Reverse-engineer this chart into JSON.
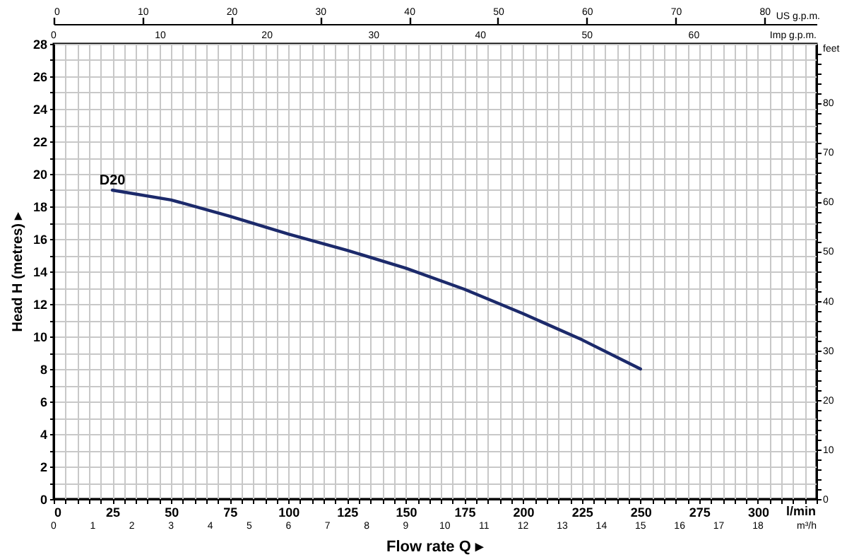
{
  "chart_data": {
    "type": "line",
    "xlabel": "Flow rate Q ▸",
    "ylabel": "Head H (metres) ▸",
    "x2label": "US g.p.m.",
    "y2label": "feet",
    "annotations": [
      "l/min",
      "m³/h",
      "0",
      "1",
      "2",
      "3",
      "4",
      "5",
      "6",
      "7",
      "8",
      "9",
      "10",
      "11",
      "12",
      "13",
      "14",
      "15",
      "16",
      "17",
      "18",
      "Imp g.p.m.",
      "0",
      "10",
      "20",
      "30",
      "40",
      "50",
      "60"
    ],
    "series": [
      {
        "name": "D20",
        "color": "#1c2a6b",
        "x": [
          25,
          50,
          75,
          100,
          125,
          150,
          175,
          200,
          225,
          250
        ],
        "values": [
          19.0,
          18.4,
          17.4,
          16.3,
          15.3,
          14.2,
          12.9,
          11.4,
          9.8,
          8.0
        ]
      }
    ],
    "xlim": [
      0,
      325
    ],
    "ylim": [
      0,
      28
    ],
    "xticks": [
      0,
      {
        "value": 5,
        "label": null
      },
      {
        "value": 10,
        "label": null
      },
      {
        "value": 15,
        "label": null
      },
      {
        "value": 20,
        "label": null
      },
      25,
      {
        "value": 30,
        "label": null
      },
      {
        "value": 35,
        "label": null
      },
      {
        "value": 40,
        "label": null
      },
      {
        "value": 45,
        "label": null
      },
      50,
      {
        "value": 55,
        "label": null
      },
      {
        "value": 60,
        "label": null
      },
      {
        "value": 65,
        "label": null
      },
      {
        "value": 70,
        "label": null
      },
      75,
      {
        "value": 80,
        "label": null
      },
      {
        "value": 85,
        "label": null
      },
      {
        "value": 90,
        "label": null
      },
      {
        "value": 95,
        "label": null
      },
      100,
      {
        "value": 105,
        "label": null
      },
      {
        "value": 110,
        "label": null
      },
      {
        "value": 115,
        "label": null
      },
      {
        "value": 120,
        "label": null
      },
      125,
      {
        "value": 130,
        "label": null
      },
      {
        "value": 135,
        "label": null
      },
      {
        "value": 140,
        "label": null
      },
      {
        "value": 145,
        "label": null
      },
      150,
      {
        "value": 155,
        "label": null
      },
      {
        "value": 160,
        "label": null
      },
      {
        "value": 165,
        "label": null
      },
      {
        "value": 170,
        "label": null
      },
      175,
      {
        "value": 180,
        "label": null
      },
      {
        "value": 185,
        "label": null
      },
      {
        "value": 190,
        "label": null
      },
      {
        "value": 195,
        "label": null
      },
      200,
      {
        "value": 205,
        "label": null
      },
      {
        "value": 210,
        "label": null
      },
      {
        "value": 215,
        "label": null
      },
      {
        "value": 220,
        "label": null
      },
      225,
      {
        "value": 230,
        "label": null
      },
      {
        "value": 235,
        "label": null
      },
      {
        "value": 240,
        "label": null
      },
      {
        "value": 245,
        "label": null
      },
      250,
      {
        "value": 255,
        "label": null
      },
      {
        "value": 260,
        "label": null
      },
      {
        "value": 265,
        "label": null
      },
      {
        "value": 270,
        "label": null
      },
      275,
      {
        "value": 280,
        "label": null
      },
      {
        "value": 285,
        "label": null
      },
      {
        "value": 290,
        "label": null
      },
      {
        "value": 295,
        "label": null
      },
      300,
      {
        "value": 305,
        "label": null
      },
      {
        "value": 310,
        "label": null
      },
      {
        "value": 315,
        "label": null
      },
      {
        "value": 320,
        "label": null
      },
      {
        "value": 325,
        "label": null
      }
    ],
    "yticks": [
      0,
      {
        "value": 1,
        "label": null
      },
      2,
      {
        "value": 3,
        "label": null
      },
      4,
      {
        "value": 5,
        "label": null
      },
      6,
      {
        "value": 7,
        "label": null
      },
      8,
      {
        "value": 9,
        "label": null
      },
      10,
      {
        "value": 11,
        "label": null
      },
      12,
      {
        "value": 13,
        "label": null
      },
      14,
      {
        "value": 15,
        "label": null
      },
      16,
      {
        "value": 17,
        "label": null
      },
      18,
      {
        "value": 19,
        "label": null
      },
      20,
      {
        "value": 21,
        "label": null
      },
      22,
      {
        "value": 23,
        "label": null
      },
      24,
      {
        "value": 25,
        "label": null
      },
      26,
      {
        "value": 27,
        "label": null
      },
      28
    ],
    "x2lim": [
      0,
      85.86
    ],
    "x2ticks": [
      0,
      10,
      20,
      30,
      40,
      50,
      60,
      70,
      80
    ],
    "y2lim": [
      0,
      91.86
    ],
    "y2ticks": [
      0,
      {
        "value": 2,
        "label": null
      },
      {
        "value": 4,
        "label": null
      },
      {
        "value": 6,
        "label": null
      },
      {
        "value": 8,
        "label": null
      },
      10,
      {
        "value": 12,
        "label": null
      },
      {
        "value": 14,
        "label": null
      },
      {
        "value": 16,
        "label": null
      },
      {
        "value": 18,
        "label": null
      },
      20,
      {
        "value": 22,
        "label": null
      },
      {
        "value": 24,
        "label": null
      },
      {
        "value": 26,
        "label": null
      },
      {
        "value": 28,
        "label": null
      },
      30,
      {
        "value": 32,
        "label": null
      },
      {
        "value": 34,
        "label": null
      },
      {
        "value": 36,
        "label": null
      },
      {
        "value": 38,
        "label": null
      },
      40,
      {
        "value": 42,
        "label": null
      },
      {
        "value": 44,
        "label": null
      },
      {
        "value": 46,
        "label": null
      },
      {
        "value": 48,
        "label": null
      },
      50,
      {
        "value": 52,
        "label": null
      },
      {
        "value": 54,
        "label": null
      },
      {
        "value": 56,
        "label": null
      },
      {
        "value": 58,
        "label": null
      },
      60,
      {
        "value": 62,
        "label": null
      },
      {
        "value": 64,
        "label": null
      },
      {
        "value": 66,
        "label": null
      },
      {
        "value": 68,
        "label": null
      },
      70,
      {
        "value": 72,
        "label": null
      },
      {
        "value": 74,
        "label": null
      },
      {
        "value": 76,
        "label": null
      },
      {
        "value": 78,
        "label": null
      },
      80,
      {
        "value": 82,
        "label": null
      },
      {
        "value": 84,
        "label": null
      },
      {
        "value": 86,
        "label": null
      },
      {
        "value": 88,
        "label": null
      },
      {
        "value": 90,
        "label": null
      }
    ],
    "grid": true,
    "marker": "none",
    "line_style": "solid"
  }
}
